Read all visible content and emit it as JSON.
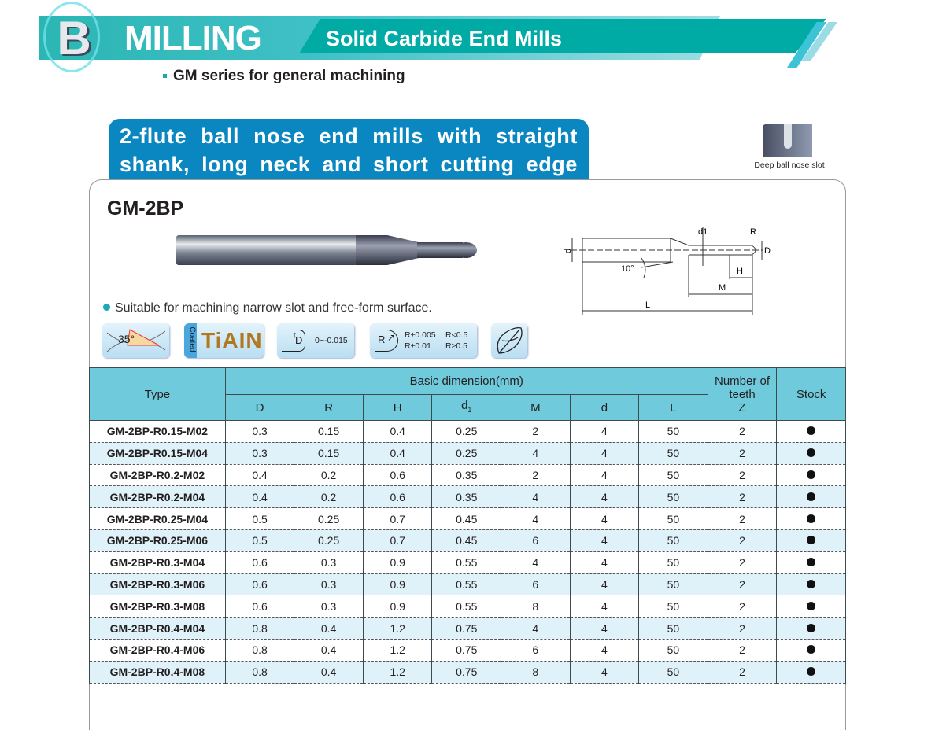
{
  "header": {
    "logo_letter": "B",
    "category": "MILLING",
    "subtitle": "Solid Carbide End Mills",
    "series": "GM series for general machining",
    "accent_color": "#00aaa5"
  },
  "product": {
    "description_line1": "2-flute ball nose end mills with straight",
    "description_line2": "shank, long neck and short cutting edge",
    "model": "GM-2BP",
    "application_label": "Deep ball nose slot",
    "feature": "Suitable for machining narrow slot and free-form surface."
  },
  "badges": {
    "helix_angle": "35°",
    "coated_label": "Coated",
    "coating": "TiAIN",
    "d_symbol": "D",
    "d_tolerance": "0~-0.015",
    "r_symbol": "R",
    "r_tol_1": "R±0.005",
    "r_cond_1": "R<0.5",
    "r_tol_2": "R±0.01",
    "r_cond_2": "R≥0.5"
  },
  "drawing": {
    "d": "d",
    "d1": "d1",
    "R": "R",
    "D": "D",
    "angle": "10°",
    "H": "H",
    "M": "M",
    "L": "L"
  },
  "table": {
    "header_type": "Type",
    "header_group": "Basic dimension(mm)",
    "header_teeth_1": "Number of",
    "header_teeth_2": "teeth",
    "header_teeth_3": "Z",
    "header_stock": "Stock",
    "columns": [
      "D",
      "R",
      "H",
      "d1",
      "M",
      "d",
      "L"
    ],
    "rows": [
      {
        "type": "GM-2BP-R0.15-M02",
        "D": "0.3",
        "R": "0.15",
        "H": "0.4",
        "d1": "0.25",
        "M": "2",
        "d": "4",
        "L": "50",
        "Z": "2",
        "stock": true
      },
      {
        "type": "GM-2BP-R0.15-M04",
        "D": "0.3",
        "R": "0.15",
        "H": "0.4",
        "d1": "0.25",
        "M": "4",
        "d": "4",
        "L": "50",
        "Z": "2",
        "stock": true
      },
      {
        "type": "GM-2BP-R0.2-M02",
        "D": "0.4",
        "R": "0.2",
        "H": "0.6",
        "d1": "0.35",
        "M": "2",
        "d": "4",
        "L": "50",
        "Z": "2",
        "stock": true
      },
      {
        "type": "GM-2BP-R0.2-M04",
        "D": "0.4",
        "R": "0.2",
        "H": "0.6",
        "d1": "0.35",
        "M": "4",
        "d": "4",
        "L": "50",
        "Z": "2",
        "stock": true
      },
      {
        "type": "GM-2BP-R0.25-M04",
        "D": "0.5",
        "R": "0.25",
        "H": "0.7",
        "d1": "0.45",
        "M": "4",
        "d": "4",
        "L": "50",
        "Z": "2",
        "stock": true
      },
      {
        "type": "GM-2BP-R0.25-M06",
        "D": "0.5",
        "R": "0.25",
        "H": "0.7",
        "d1": "0.45",
        "M": "6",
        "d": "4",
        "L": "50",
        "Z": "2",
        "stock": true
      },
      {
        "type": "GM-2BP-R0.3-M04",
        "D": "0.6",
        "R": "0.3",
        "H": "0.9",
        "d1": "0.55",
        "M": "4",
        "d": "4",
        "L": "50",
        "Z": "2",
        "stock": true
      },
      {
        "type": "GM-2BP-R0.3-M06",
        "D": "0.6",
        "R": "0.3",
        "H": "0.9",
        "d1": "0.55",
        "M": "6",
        "d": "4",
        "L": "50",
        "Z": "2",
        "stock": true
      },
      {
        "type": "GM-2BP-R0.3-M08",
        "D": "0.6",
        "R": "0.3",
        "H": "0.9",
        "d1": "0.55",
        "M": "8",
        "d": "4",
        "L": "50",
        "Z": "2",
        "stock": true
      },
      {
        "type": "GM-2BP-R0.4-M04",
        "D": "0.8",
        "R": "0.4",
        "H": "1.2",
        "d1": "0.75",
        "M": "4",
        "d": "4",
        "L": "50",
        "Z": "2",
        "stock": true
      },
      {
        "type": "GM-2BP-R0.4-M06",
        "D": "0.8",
        "R": "0.4",
        "H": "1.2",
        "d1": "0.75",
        "M": "6",
        "d": "4",
        "L": "50",
        "Z": "2",
        "stock": true
      },
      {
        "type": "GM-2BP-R0.4-M08",
        "D": "0.8",
        "R": "0.4",
        "H": "1.2",
        "d1": "0.75",
        "M": "8",
        "d": "4",
        "L": "50",
        "Z": "2",
        "stock": true
      }
    ]
  }
}
